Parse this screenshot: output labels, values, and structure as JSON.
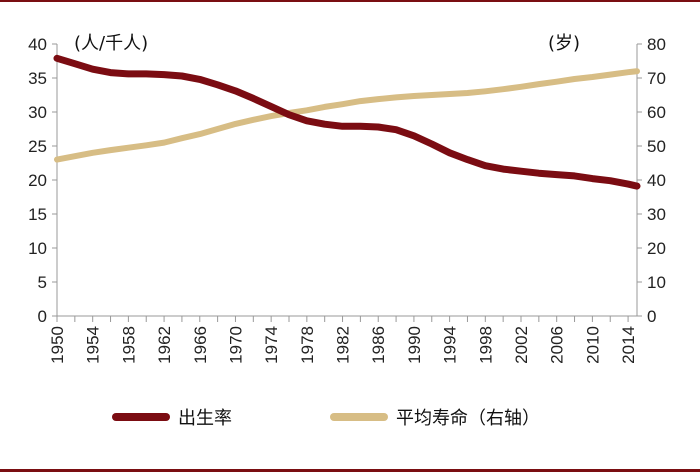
{
  "chart_data": {
    "type": "line",
    "y_left_unit": "(人/千人)",
    "y_right_unit": "(岁)",
    "y_left_ticks": [
      0,
      5,
      10,
      15,
      20,
      25,
      30,
      35,
      40
    ],
    "y_right_ticks": [
      0,
      10,
      20,
      30,
      40,
      50,
      60,
      70,
      80
    ],
    "y_left_range": [
      0,
      40
    ],
    "y_right_range": [
      0,
      80
    ],
    "x_range": [
      1950,
      2015
    ],
    "x_tick_labels": [
      "1950",
      "1954",
      "1958",
      "1962",
      "1966",
      "1970",
      "1974",
      "1978",
      "1982",
      "1986",
      "1990",
      "1994",
      "1998",
      "2002",
      "2006",
      "2010",
      "2014"
    ],
    "grid": false,
    "legend_position": "bottom",
    "colors": {
      "birth_rate": "#7b0c12",
      "life_expectancy": "#d7bd85",
      "axis": "#999999",
      "frame": "#7a0e12"
    },
    "series": [
      {
        "name": "出生率",
        "axis": "left",
        "x": [
          1950,
          1952,
          1954,
          1956,
          1958,
          1960,
          1962,
          1964,
          1966,
          1968,
          1970,
          1972,
          1974,
          1976,
          1978,
          1980,
          1982,
          1984,
          1986,
          1988,
          1990,
          1992,
          1994,
          1996,
          1998,
          2000,
          2002,
          2004,
          2006,
          2008,
          2010,
          2012,
          2014,
          2015
        ],
        "values": [
          37.9,
          37.1,
          36.3,
          35.8,
          35.6,
          35.6,
          35.5,
          35.3,
          34.8,
          34.0,
          33.1,
          32.0,
          30.8,
          29.6,
          28.7,
          28.2,
          27.9,
          27.9,
          27.8,
          27.4,
          26.5,
          25.3,
          24.0,
          23.0,
          22.1,
          21.6,
          21.3,
          21.0,
          20.8,
          20.6,
          20.2,
          19.9,
          19.4,
          19.1
        ]
      },
      {
        "name": "平均寿命（右轴）",
        "axis": "right",
        "x": [
          1950,
          1952,
          1954,
          1956,
          1958,
          1960,
          1962,
          1964,
          1966,
          1968,
          1970,
          1972,
          1974,
          1976,
          1978,
          1980,
          1982,
          1984,
          1986,
          1988,
          1990,
          1992,
          1994,
          1996,
          1998,
          2000,
          2002,
          2004,
          2006,
          2008,
          2010,
          2012,
          2014,
          2015
        ],
        "values": [
          46.0,
          47.0,
          48.0,
          48.8,
          49.5,
          50.2,
          51.0,
          52.3,
          53.5,
          55.0,
          56.5,
          57.7,
          58.8,
          59.7,
          60.5,
          61.5,
          62.3,
          63.2,
          63.8,
          64.3,
          64.7,
          65.0,
          65.3,
          65.6,
          66.1,
          66.7,
          67.4,
          68.2,
          68.9,
          69.7,
          70.3,
          71.0,
          71.7,
          72.0
        ]
      }
    ]
  },
  "legend": {
    "items": [
      {
        "label": "出生率",
        "color": "#7b0c12"
      },
      {
        "label": "平均寿命（右轴）",
        "color": "#d7bd85"
      }
    ]
  }
}
